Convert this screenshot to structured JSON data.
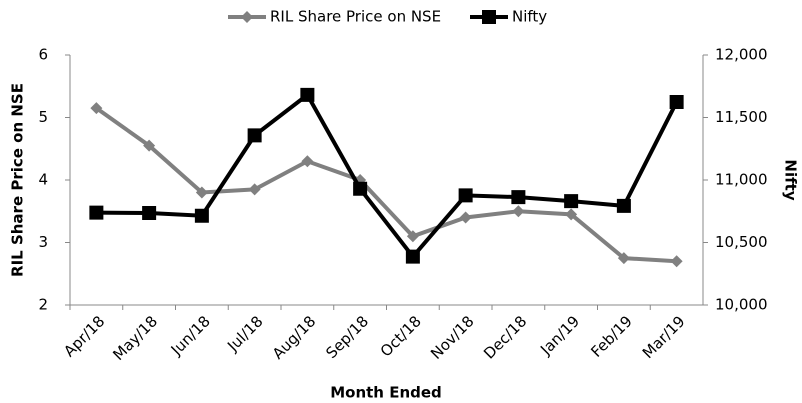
{
  "chart_data": {
    "type": "line",
    "categories": [
      "Apr/18",
      "May/18",
      "Jun/18",
      "Jul/18",
      "Aug/18",
      "Sep/18",
      "Oct/18",
      "Nov/18",
      "Dec/18",
      "Jan/19",
      "Feb/19",
      "Mar/19"
    ],
    "series": [
      {
        "name": "RIL Share Price on NSE",
        "color": "#808080",
        "marker": "diamond",
        "values": [
          5.15,
          4.55,
          3.8,
          3.85,
          4.3,
          4.0,
          3.1,
          3.4,
          3.5,
          3.45,
          2.75,
          2.7
        ]
      },
      {
        "name": "Nifty",
        "color": "#000000",
        "marker": "square",
        "axis": "y2",
        "values": [
          10739,
          10736,
          10714,
          11357,
          11681,
          10930,
          10387,
          10877,
          10863,
          10831,
          10793,
          11624
        ]
      }
    ],
    "xlabel": "Month Ended",
    "ylabel": "RIL Share Price on NSE",
    "y2label": "Nifty",
    "ylim": [
      2,
      6
    ],
    "yticks": [
      2,
      3,
      4,
      5,
      6
    ],
    "y2lim": [
      10000,
      12000
    ],
    "y2ticks": [
      {
        "value": 10000,
        "label": "10,000"
      },
      {
        "value": 10500,
        "label": "10,500"
      },
      {
        "value": 11000,
        "label": "11,000"
      },
      {
        "value": 11500,
        "label": "11,500"
      },
      {
        "value": 12000,
        "label": "12,000"
      }
    ],
    "legend": "top",
    "grid": false
  }
}
